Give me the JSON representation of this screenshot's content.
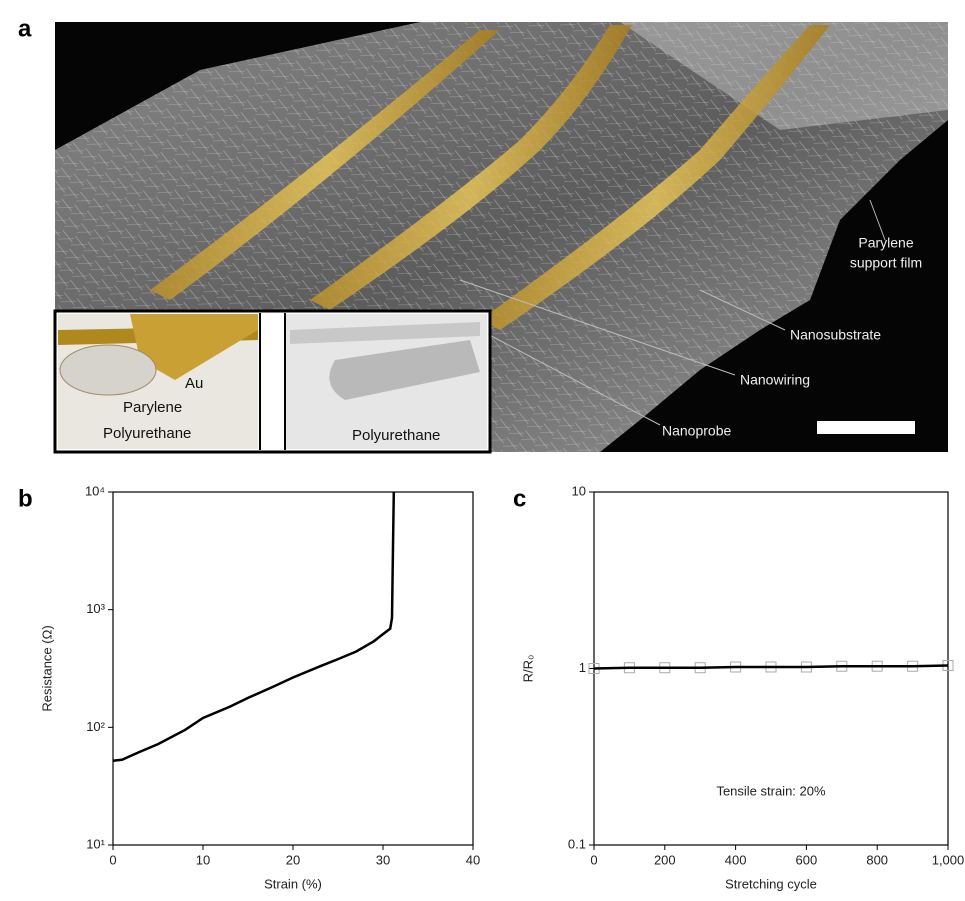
{
  "panel_a": {
    "label": "a",
    "annotations": [
      [
        "Parylene",
        "support film"
      ],
      "Nanosubstrate",
      "Nanowiring",
      "Nanoprobe"
    ],
    "inset": [
      "Au",
      "Parylene",
      "Polyurethane",
      "Polyurethane"
    ]
  },
  "chart_data": [
    {
      "type": "line",
      "panel_label": "b",
      "x_label": "Strain (%)",
      "y_label": "Resistance (Ω)",
      "x": [
        0,
        1,
        3,
        5,
        8,
        10,
        13,
        15,
        18,
        20,
        23,
        25,
        27,
        29,
        30,
        30.8,
        31,
        31.1,
        31.2
      ],
      "values": [
        52,
        53,
        62,
        72,
        95,
        120,
        150,
        178,
        225,
        265,
        330,
        380,
        440,
        540,
        620,
        690,
        850,
        3000,
        10000
      ],
      "color": "#000000",
      "y_scale": "log",
      "xlim": [
        0,
        40
      ],
      "xticks": [
        0,
        10,
        20,
        30,
        40
      ],
      "ylim": [
        10,
        10000
      ],
      "yticks": [
        {
          "value": 10,
          "label": "10¹"
        },
        {
          "value": 100,
          "label": "10²"
        },
        {
          "value": 1000,
          "label": "10³"
        },
        {
          "value": 10000,
          "label": "10⁴"
        }
      ]
    },
    {
      "type": "line",
      "panel_label": "c",
      "x_label": "Stretching cycle",
      "y_label": "R/R₀",
      "annotation": "Tensile strain: 20%",
      "x": [
        0,
        100,
        200,
        300,
        400,
        500,
        600,
        700,
        800,
        900,
        1000
      ],
      "values": [
        1.0,
        1.01,
        1.01,
        1.01,
        1.02,
        1.02,
        1.02,
        1.03,
        1.03,
        1.03,
        1.04
      ],
      "color": "#000000",
      "marker": "square",
      "marker_color": "#aaaaaa",
      "y_scale": "log",
      "xlim": [
        0,
        1000
      ],
      "xticks": [
        0,
        200,
        400,
        600,
        800,
        {
          "value": 1000,
          "label": "1,000"
        }
      ],
      "ylim": [
        0.1,
        10
      ],
      "yticks": [
        0.1,
        1,
        10
      ]
    }
  ]
}
